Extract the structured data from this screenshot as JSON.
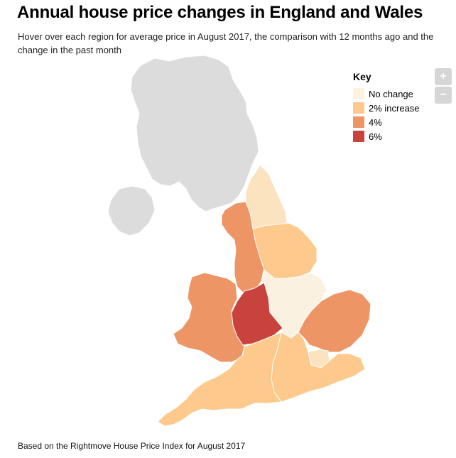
{
  "title": "Annual house price changes in England and Wales",
  "subtitle": "Hover over each region for average price in August 2017, the comparison with 12 months ago and the change in the past month",
  "key": {
    "title": "Key",
    "items": [
      {
        "label": "No change",
        "color": "#fbf3e0"
      },
      {
        "label": "2% increase",
        "color": "#fdc98c"
      },
      {
        "label": "4%",
        "color": "#ee9566"
      },
      {
        "label": "6%",
        "color": "#c8433d"
      }
    ]
  },
  "zoom": {
    "in_label": "+",
    "out_label": "−"
  },
  "colors": {
    "no_data": "#dcdcdc",
    "north_east": "#fbe3c0",
    "yorkshire": "#fdc98c",
    "north_west": "#ee9566",
    "east_midlands": "#fbf1e1",
    "west_midlands": "#c8433d",
    "wales": "#ee9566",
    "east": "#ee9566",
    "london": "#fbe3c0",
    "south_east": "#fdc98c",
    "south_west": "#fdc98c"
  },
  "footer": "Based on the Rightmove House Price Index for August 2017"
}
